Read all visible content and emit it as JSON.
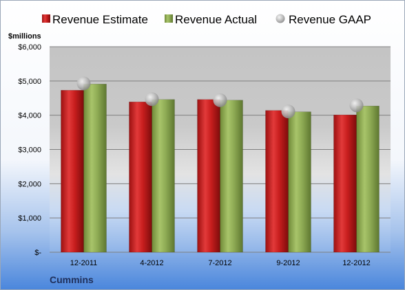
{
  "chart_data": {
    "type": "bar",
    "company": "Cummins",
    "unit_label": "$millions",
    "categories": [
      "12-2011",
      "4-2012",
      "7-2012",
      "9-2012",
      "12-2012"
    ],
    "series": [
      {
        "name": "Revenue Estimate",
        "kind": "bar",
        "color": "#c81e1e",
        "values": [
          4730,
          4390,
          4460,
          4140,
          4010
        ]
      },
      {
        "name": "Revenue Actual",
        "kind": "bar",
        "color": "#8fac55",
        "values": [
          4910,
          4460,
          4440,
          4100,
          4270
        ]
      },
      {
        "name": "Revenue GAAP",
        "kind": "marker",
        "color": "#b8b8b8",
        "values": [
          4930,
          4470,
          4440,
          4110,
          4290
        ]
      }
    ],
    "ylim": [
      0,
      6000
    ],
    "yticks": [
      0,
      1000,
      2000,
      3000,
      4000,
      5000,
      6000
    ],
    "ytick_labels": [
      "$-",
      "$1,000",
      "$2,000",
      "$3,000",
      "$4,000",
      "$5,000",
      "$6,000"
    ],
    "grid": true,
    "legend_position": "top"
  }
}
